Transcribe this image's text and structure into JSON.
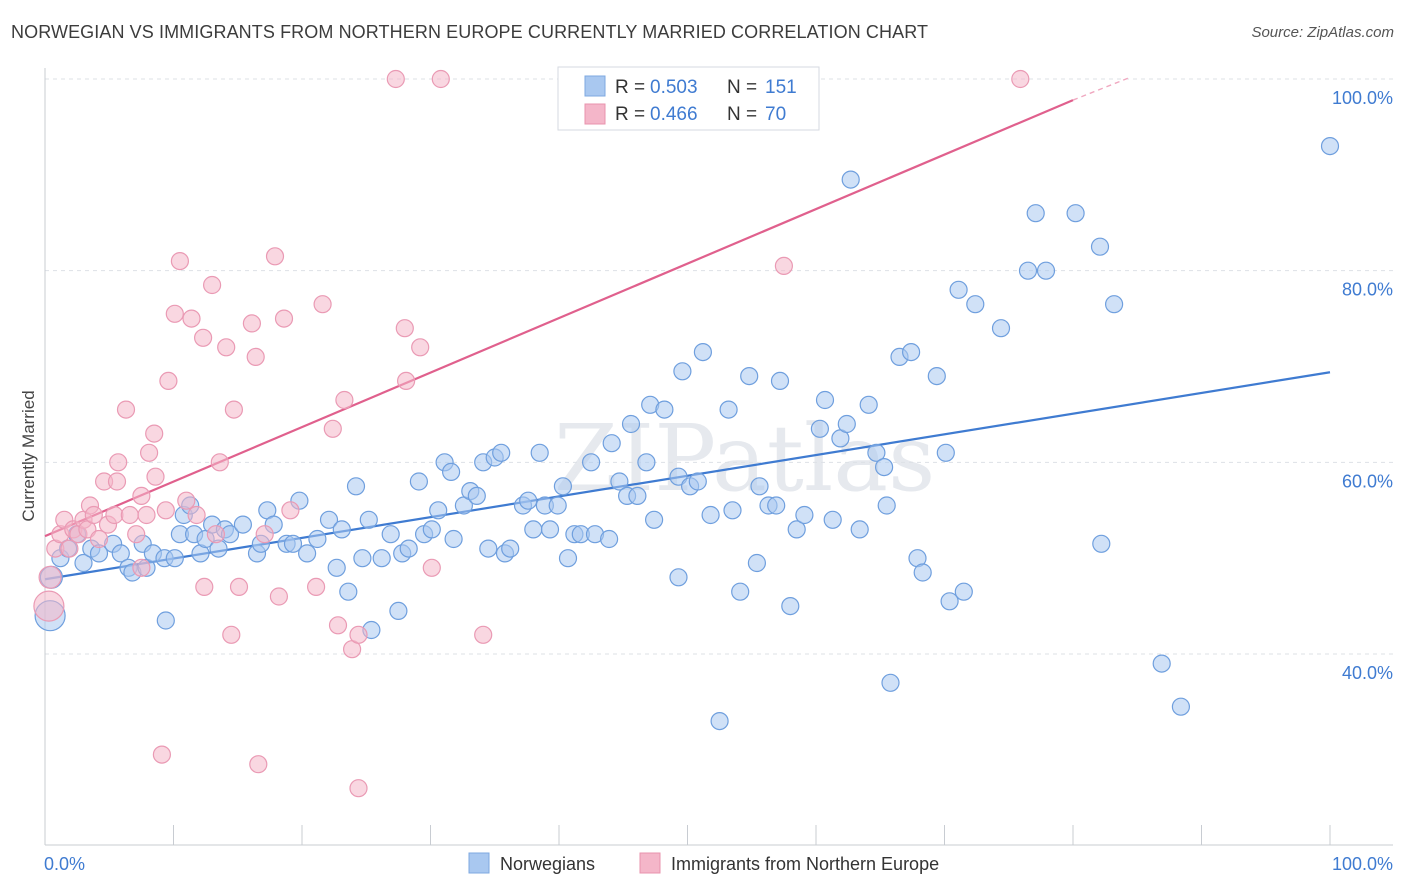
{
  "title": "NORWEGIAN VS IMMIGRANTS FROM NORTHERN EUROPE CURRENTLY MARRIED CORRELATION CHART",
  "source": "Source: ZipAtlas.com",
  "watermark": "ZIPatlas",
  "colors": {
    "blue": "#3f7bd1",
    "blue_fill": "#a9c8f0",
    "pink": "#e0608d",
    "pink_fill": "#f4b6c9",
    "grid": "#dde1e6"
  },
  "legend": {
    "rows": [
      {
        "r_label": "R =",
        "r_value": "0.503",
        "n_label": "N =",
        "n_value": "151"
      },
      {
        "r_label": "R =",
        "r_value": "0.466",
        "n_label": "N =",
        "n_value": "70"
      }
    ]
  },
  "chart_data": {
    "type": "scatter",
    "title": "NORWEGIAN VS IMMIGRANTS FROM NORTHERN EUROPE CURRENTLY MARRIED CORRELATION CHART",
    "xlabel": "",
    "ylabel": "Currently Married",
    "xlim": [
      0,
      100
    ],
    "ylim": [
      20,
      102
    ],
    "x_tick_labels": [
      "0.0%",
      "100.0%"
    ],
    "y_tick_labels": [
      "40.0%",
      "60.0%",
      "80.0%",
      "100.0%"
    ],
    "y_ticks": [
      40,
      60,
      80,
      100
    ],
    "grid": true,
    "legend_position": "top-center",
    "series": [
      {
        "name": "Norwegians",
        "color": "#3f7bd1",
        "trend": {
          "x": [
            0,
            100
          ],
          "y": [
            47.8,
            69.4
          ]
        },
        "points": [
          [
            0.4,
            44
          ],
          [
            0.5,
            48
          ],
          [
            1.2,
            50
          ],
          [
            1.8,
            51
          ],
          [
            2.5,
            52.5
          ],
          [
            3,
            49.5
          ],
          [
            3.6,
            51
          ],
          [
            4.2,
            50.5
          ],
          [
            5.3,
            51.5
          ],
          [
            5.9,
            50.5
          ],
          [
            6.5,
            49
          ],
          [
            6.8,
            48.5
          ],
          [
            7.6,
            51.5
          ],
          [
            7.9,
            49
          ],
          [
            8.4,
            50.5
          ],
          [
            9.3,
            50
          ],
          [
            9.4,
            43.5
          ],
          [
            10.1,
            50
          ],
          [
            10.5,
            52.5
          ],
          [
            10.8,
            54.5
          ],
          [
            11.3,
            55.5
          ],
          [
            11.6,
            52.5
          ],
          [
            12.1,
            50.5
          ],
          [
            12.5,
            52
          ],
          [
            13,
            53.5
          ],
          [
            13.5,
            51
          ],
          [
            14,
            53
          ],
          [
            14.4,
            52.5
          ],
          [
            15.4,
            53.5
          ],
          [
            16.5,
            50.5
          ],
          [
            16.8,
            51.5
          ],
          [
            17.3,
            55
          ],
          [
            17.8,
            53.5
          ],
          [
            18.8,
            51.5
          ],
          [
            19.3,
            51.5
          ],
          [
            19.8,
            56
          ],
          [
            20.4,
            50.5
          ],
          [
            21.2,
            52
          ],
          [
            22.1,
            54
          ],
          [
            22.7,
            49
          ],
          [
            23.1,
            53
          ],
          [
            23.6,
            46.5
          ],
          [
            24.2,
            57.5
          ],
          [
            24.7,
            50
          ],
          [
            25.2,
            54
          ],
          [
            25.4,
            42.5
          ],
          [
            26.2,
            50
          ],
          [
            26.9,
            52.5
          ],
          [
            27.5,
            44.5
          ],
          [
            27.8,
            50.5
          ],
          [
            28.3,
            51
          ],
          [
            29.1,
            58
          ],
          [
            29.5,
            52.5
          ],
          [
            30.1,
            53
          ],
          [
            30.6,
            55
          ],
          [
            31.1,
            60
          ],
          [
            31.6,
            59
          ],
          [
            31.8,
            52
          ],
          [
            32.6,
            55.5
          ],
          [
            33.1,
            57
          ],
          [
            33.6,
            56.5
          ],
          [
            34.1,
            60
          ],
          [
            34.5,
            51
          ],
          [
            35,
            60.5
          ],
          [
            35.5,
            61
          ],
          [
            35.8,
            50.5
          ],
          [
            36.2,
            51
          ],
          [
            37.2,
            55.5
          ],
          [
            37.6,
            56
          ],
          [
            38,
            53
          ],
          [
            38.5,
            61
          ],
          [
            38.9,
            55.5
          ],
          [
            39.3,
            53
          ],
          [
            39.9,
            55.5
          ],
          [
            40.3,
            57.5
          ],
          [
            40.7,
            50
          ],
          [
            41.2,
            52.5
          ],
          [
            41.7,
            52.5
          ],
          [
            42.5,
            60
          ],
          [
            42.8,
            52.5
          ],
          [
            43.9,
            52
          ],
          [
            44.1,
            62
          ],
          [
            44.7,
            58
          ],
          [
            45.3,
            56.5
          ],
          [
            45.6,
            64
          ],
          [
            46.1,
            56.5
          ],
          [
            46.8,
            60
          ],
          [
            47.1,
            66
          ],
          [
            47.4,
            54
          ],
          [
            48.2,
            65.5
          ],
          [
            49.3,
            48
          ],
          [
            49.3,
            58.5
          ],
          [
            49.6,
            69.5
          ],
          [
            50.2,
            57.5
          ],
          [
            50.8,
            58
          ],
          [
            51.2,
            71.5
          ],
          [
            51.8,
            54.5
          ],
          [
            52.5,
            33
          ],
          [
            53.2,
            65.5
          ],
          [
            53.5,
            55
          ],
          [
            54.1,
            46.5
          ],
          [
            54.8,
            69
          ],
          [
            55.4,
            49.5
          ],
          [
            55.6,
            57.5
          ],
          [
            56.3,
            55.5
          ],
          [
            56.9,
            55.5
          ],
          [
            57.2,
            68.5
          ],
          [
            58,
            45
          ],
          [
            58.5,
            53
          ],
          [
            59.1,
            54.5
          ],
          [
            60.3,
            63.5
          ],
          [
            60.7,
            66.5
          ],
          [
            61.3,
            54
          ],
          [
            61.9,
            62.5
          ],
          [
            62.4,
            64
          ],
          [
            62.7,
            89.5
          ],
          [
            63.4,
            53
          ],
          [
            64.1,
            66
          ],
          [
            64.7,
            61
          ],
          [
            65.3,
            59.5
          ],
          [
            65.5,
            55.5
          ],
          [
            65.8,
            37
          ],
          [
            66.5,
            71
          ],
          [
            67.4,
            71.5
          ],
          [
            67.9,
            50
          ],
          [
            68.3,
            48.5
          ],
          [
            69.4,
            69
          ],
          [
            70.1,
            61
          ],
          [
            70.4,
            45.5
          ],
          [
            71.1,
            78
          ],
          [
            71.5,
            46.5
          ],
          [
            72.4,
            76.5
          ],
          [
            74.4,
            74
          ],
          [
            76.5,
            80
          ],
          [
            77.1,
            86
          ],
          [
            77.9,
            80
          ],
          [
            80.2,
            86
          ],
          [
            82.1,
            82.5
          ],
          [
            82.2,
            51.5
          ],
          [
            83.2,
            76.5
          ],
          [
            86.9,
            39
          ],
          [
            88.4,
            34.5
          ],
          [
            100,
            93
          ]
        ]
      },
      {
        "name": "Immigrants from Northern Europe",
        "color": "#e0608d",
        "trend": {
          "x": [
            0,
            80
          ],
          "y": [
            52.3,
            97.8
          ]
        },
        "trend_dashed": {
          "x": [
            80,
            84.5
          ],
          "y": [
            97.8,
            100.2
          ]
        },
        "points": [
          [
            0.3,
            45
          ],
          [
            0.4,
            48
          ],
          [
            0.8,
            51
          ],
          [
            1.2,
            52.5
          ],
          [
            1.5,
            54
          ],
          [
            1.9,
            51
          ],
          [
            2.2,
            53
          ],
          [
            2.6,
            52.5
          ],
          [
            3.0,
            54
          ],
          [
            3.3,
            53
          ],
          [
            3.5,
            55.5
          ],
          [
            3.8,
            54.5
          ],
          [
            4.2,
            52
          ],
          [
            4.6,
            58
          ],
          [
            4.9,
            53.5
          ],
          [
            5.4,
            54.5
          ],
          [
            5.6,
            58
          ],
          [
            5.7,
            60
          ],
          [
            6.3,
            65.5
          ],
          [
            6.6,
            54.5
          ],
          [
            7.1,
            52.5
          ],
          [
            7.5,
            56.5
          ],
          [
            7.5,
            49
          ],
          [
            7.9,
            54.5
          ],
          [
            8.1,
            61
          ],
          [
            8.5,
            63
          ],
          [
            8.6,
            58.5
          ],
          [
            9.1,
            29.5
          ],
          [
            9.4,
            55
          ],
          [
            9.6,
            68.5
          ],
          [
            10.1,
            75.5
          ],
          [
            10.5,
            81
          ],
          [
            11,
            56
          ],
          [
            11.4,
            75
          ],
          [
            11.8,
            54.5
          ],
          [
            12.3,
            73
          ],
          [
            12.4,
            47
          ],
          [
            13,
            78.5
          ],
          [
            13.3,
            52.5
          ],
          [
            13.6,
            60
          ],
          [
            14.1,
            72
          ],
          [
            14.5,
            42
          ],
          [
            14.7,
            65.5
          ],
          [
            15.1,
            47
          ],
          [
            16.1,
            74.5
          ],
          [
            16.4,
            71
          ],
          [
            16.6,
            28.5
          ],
          [
            17.1,
            52.5
          ],
          [
            17.9,
            81.5
          ],
          [
            18.2,
            46
          ],
          [
            18.6,
            75
          ],
          [
            19.1,
            55
          ],
          [
            21.1,
            47
          ],
          [
            21.6,
            76.5
          ],
          [
            22.4,
            63.5
          ],
          [
            22.8,
            43
          ],
          [
            23.3,
            66.5
          ],
          [
            23.9,
            40.5
          ],
          [
            24.4,
            42
          ],
          [
            24.4,
            26
          ],
          [
            27.3,
            100
          ],
          [
            28,
            74
          ],
          [
            28.1,
            68.5
          ],
          [
            29.2,
            72
          ],
          [
            30.1,
            49
          ],
          [
            30.8,
            100
          ],
          [
            34.1,
            42
          ],
          [
            57.5,
            80.5
          ],
          [
            75.9,
            100
          ]
        ]
      }
    ]
  },
  "bottom_legend": {
    "items": [
      "Norwegians",
      "Immigrants from Northern Europe"
    ]
  }
}
